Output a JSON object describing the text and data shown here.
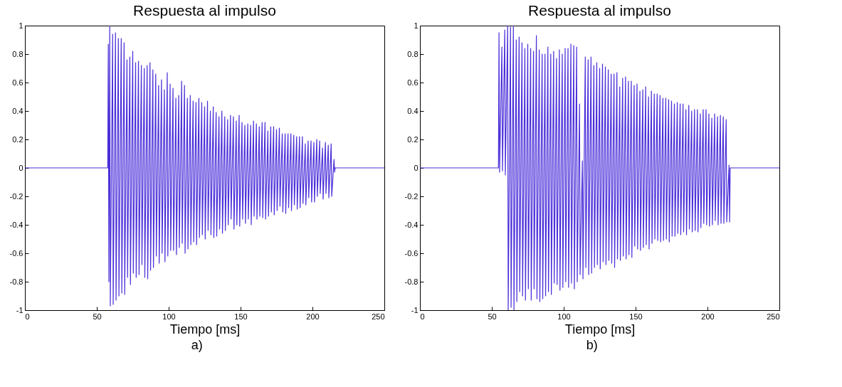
{
  "chart_data": [
    {
      "type": "line",
      "title": "Respuesta al impulso",
      "xlabel": "Tiempo [ms]",
      "annotations": [
        "a)"
      ],
      "xlim": [
        0,
        250
      ],
      "xticks": [
        0,
        50,
        100,
        150,
        200,
        250
      ],
      "ylim": [
        -1,
        1
      ],
      "yticks": [
        -1,
        -0.8,
        -0.6,
        -0.4,
        -0.2,
        0,
        0.2,
        0.4,
        0.6,
        0.8,
        1
      ],
      "series": [
        {
          "color": "#4b2fd9",
          "x": [
            0,
            57.6,
            58,
            58.4,
            59,
            59.4,
            61,
            61.4,
            63,
            63.4,
            65,
            65.4,
            67,
            67.4,
            69,
            69.4,
            71,
            71.4,
            73,
            73.4,
            75,
            75.4,
            77,
            77.4,
            79,
            79.4,
            81,
            81.4,
            83,
            83.4,
            85,
            85.4,
            87,
            87.4,
            89,
            89.4,
            91,
            91.4,
            93,
            93.4,
            95,
            95.4,
            97,
            97.4,
            99,
            99.4,
            101,
            101.4,
            103,
            103.4,
            105,
            105.4,
            107,
            107.4,
            109,
            109.4,
            111,
            111.4,
            113,
            113.4,
            115,
            115.4,
            117,
            117.4,
            119,
            119.4,
            121,
            121.4,
            123,
            123.4,
            125,
            125.4,
            127,
            127.4,
            129,
            129.4,
            131,
            131.4,
            133,
            133.4,
            135,
            135.4,
            137,
            137.4,
            139,
            139.4,
            141,
            141.4,
            143,
            143.4,
            145,
            145.4,
            147,
            147.4,
            149,
            149.4,
            151,
            151.4,
            153,
            153.4,
            155,
            155.4,
            157,
            157.4,
            159,
            159.4,
            161,
            161.4,
            163,
            163.4,
            165,
            165.4,
            167,
            167.4,
            169,
            169.4,
            171,
            171.4,
            173,
            173.4,
            175,
            175.4,
            177,
            177.4,
            179,
            179.4,
            181,
            181.4,
            183,
            183.4,
            185,
            185.4,
            187,
            187.4,
            189,
            189.4,
            191,
            191.4,
            193,
            193.4,
            195,
            195.4,
            197,
            197.4,
            199,
            199.4,
            201,
            201.4,
            203,
            203.4,
            205,
            205.4,
            207,
            207.4,
            209,
            209.4,
            211,
            211.4,
            213,
            213.4,
            215,
            215.4,
            215.8,
            250
          ],
          "values": [
            0,
            0,
            0.87,
            -0.8,
            1.0,
            -0.97,
            0.94,
            -0.96,
            0.95,
            -0.93,
            0.91,
            -0.9,
            0.91,
            -0.88,
            0.88,
            -0.89,
            0.76,
            -0.77,
            0.78,
            -0.82,
            0.82,
            -0.74,
            0.74,
            -0.77,
            0.75,
            -0.75,
            0.72,
            -0.68,
            0.7,
            -0.77,
            0.72,
            -0.78,
            0.74,
            -0.72,
            0.69,
            -0.7,
            0.66,
            -0.62,
            0.58,
            -0.67,
            0.62,
            -0.6,
            0.55,
            -0.66,
            0.67,
            -0.62,
            0.59,
            -0.58,
            0.56,
            -0.58,
            0.49,
            -0.61,
            0.51,
            -0.56,
            0.61,
            -0.53,
            0.58,
            -0.6,
            0.49,
            -0.57,
            0.51,
            -0.54,
            0.47,
            -0.52,
            0.46,
            -0.54,
            0.49,
            -0.49,
            0.46,
            -0.47,
            0.43,
            -0.5,
            0.47,
            -0.44,
            0.4,
            -0.47,
            0.43,
            -0.49,
            0.39,
            -0.48,
            0.36,
            -0.43,
            0.4,
            -0.46,
            0.36,
            -0.44,
            0.34,
            -0.4,
            0.37,
            -0.36,
            0.36,
            -0.43,
            0.33,
            -0.4,
            0.37,
            -0.41,
            0.32,
            -0.36,
            0.3,
            -0.39,
            0.31,
            -0.36,
            0.3,
            -0.4,
            0.33,
            -0.34,
            0.31,
            -0.36,
            0.29,
            -0.34,
            0.32,
            -0.35,
            0.32,
            -0.36,
            0.26,
            -0.34,
            0.29,
            -0.31,
            0.29,
            -0.33,
            0.27,
            -0.3,
            0.28,
            -0.27,
            0.24,
            -0.31,
            0.24,
            -0.32,
            0.24,
            -0.28,
            0.24,
            -0.3,
            0.23,
            -0.26,
            0.22,
            -0.29,
            0.22,
            -0.28,
            0.22,
            -0.25,
            0.17,
            -0.26,
            0.19,
            -0.21,
            0.19,
            -0.24,
            0.18,
            -0.24,
            0.2,
            -0.2,
            0.19,
            -0.18,
            0.14,
            -0.22,
            0.18,
            -0.18,
            0.16,
            -0.21,
            0.17,
            -0.2,
            0.06,
            -0.03,
            0,
            0
          ]
        }
      ]
    },
    {
      "type": "line",
      "title": "Respuesta al impulso",
      "xlabel": "Tiempo [ms]",
      "annotations": [
        "b)"
      ],
      "xlim": [
        0,
        250
      ],
      "xticks": [
        0,
        50,
        100,
        150,
        200,
        250
      ],
      "ylim": [
        -1,
        1
      ],
      "yticks": [
        -1,
        -0.8,
        -0.6,
        -0.4,
        -0.2,
        0,
        0.2,
        0.4,
        0.6,
        0.8,
        1
      ],
      "series": [
        {
          "color": "#4b2fd9",
          "x": [
            0,
            54.6,
            55,
            55.4,
            57,
            57.4,
            59,
            59.4,
            61,
            61.4,
            63,
            63.4,
            65,
            65.4,
            67,
            67.4,
            69,
            69.4,
            71,
            71.4,
            73,
            73.4,
            75,
            75.4,
            77,
            77.4,
            79,
            79.4,
            81,
            81.4,
            83,
            83.4,
            85,
            85.4,
            87,
            87.4,
            89,
            89.4,
            91,
            91.4,
            93,
            93.4,
            95,
            95.4,
            97,
            97.4,
            99,
            99.4,
            101,
            101.4,
            103,
            103.4,
            105,
            105.4,
            107,
            107.4,
            109,
            109.4,
            111,
            111.4,
            113,
            113.4,
            115,
            115.4,
            117,
            117.4,
            119,
            119.4,
            121,
            121.4,
            123,
            123.4,
            125,
            125.4,
            127,
            127.4,
            129,
            129.4,
            131,
            131.4,
            133,
            133.4,
            135,
            135.4,
            137,
            137.4,
            139,
            139.4,
            141,
            141.4,
            143,
            143.4,
            145,
            145.4,
            147,
            147.4,
            149,
            149.4,
            151,
            151.4,
            153,
            153.4,
            155,
            155.4,
            157,
            157.4,
            159,
            159.4,
            161,
            161.4,
            163,
            163.4,
            165,
            165.4,
            167,
            167.4,
            169,
            169.4,
            171,
            171.4,
            173,
            173.4,
            175,
            175.4,
            177,
            177.4,
            179,
            179.4,
            181,
            181.4,
            183,
            183.4,
            185,
            185.4,
            187,
            187.4,
            189,
            189.4,
            191,
            191.4,
            193,
            193.4,
            195,
            195.4,
            197,
            197.4,
            199,
            199.4,
            201,
            201.4,
            203,
            203.4,
            205,
            205.4,
            207,
            207.4,
            209,
            209.4,
            211,
            211.4,
            213,
            213.4,
            215,
            215.4,
            215.8,
            250
          ],
          "values": [
            0,
            0,
            0.95,
            -0.03,
            0.85,
            -0.02,
            0.97,
            -0.05,
            1.0,
            -1.0,
            0.99,
            -0.98,
            1.0,
            -1.0,
            0.9,
            -0.94,
            0.92,
            -0.87,
            0.88,
            -0.9,
            0.84,
            -0.93,
            0.87,
            -0.85,
            0.84,
            -0.93,
            0.82,
            -0.85,
            0.93,
            -0.92,
            0.83,
            -0.94,
            0.8,
            -0.92,
            0.8,
            -0.9,
            0.85,
            -0.87,
            0.8,
            -0.89,
            0.82,
            -0.81,
            0.77,
            -0.82,
            0.83,
            -0.86,
            0.8,
            -0.84,
            0.84,
            -0.8,
            0.84,
            -0.84,
            0.87,
            -0.81,
            0.86,
            -0.85,
            0.85,
            -0.8,
            0.45,
            -0.75,
            0.05,
            -0.78,
            0.78,
            -0.7,
            0.76,
            -0.75,
            0.78,
            -0.74,
            0.72,
            -0.7,
            0.74,
            -0.68,
            0.7,
            -0.71,
            0.73,
            -0.66,
            0.71,
            -0.68,
            0.69,
            -0.65,
            0.66,
            -0.67,
            0.66,
            -0.7,
            0.67,
            -0.64,
            0.57,
            -0.65,
            0.63,
            -0.62,
            0.64,
            -0.64,
            0.61,
            -0.61,
            0.61,
            -0.63,
            0.58,
            -0.55,
            0.59,
            -0.57,
            0.54,
            -0.58,
            0.55,
            -0.56,
            0.57,
            -0.54,
            0.5,
            -0.57,
            0.54,
            -0.53,
            0.52,
            -0.5,
            0.52,
            -0.51,
            0.51,
            -0.52,
            0.49,
            -0.51,
            0.49,
            -0.5,
            0.48,
            -0.52,
            0.47,
            -0.48,
            0.45,
            -0.48,
            0.46,
            -0.46,
            0.45,
            -0.47,
            0.45,
            -0.45,
            0.41,
            -0.47,
            0.44,
            -0.43,
            0.4,
            -0.45,
            0.41,
            -0.44,
            0.41,
            -0.45,
            0.38,
            -0.42,
            0.41,
            -0.39,
            0.41,
            -0.4,
            0.38,
            -0.41,
            0.35,
            -0.4,
            0.38,
            -0.37,
            0.36,
            -0.4,
            0.37,
            -0.39,
            0.36,
            -0.39,
            0.34,
            -0.38,
            0.02,
            -0.38,
            0,
            0
          ]
        }
      ]
    }
  ]
}
